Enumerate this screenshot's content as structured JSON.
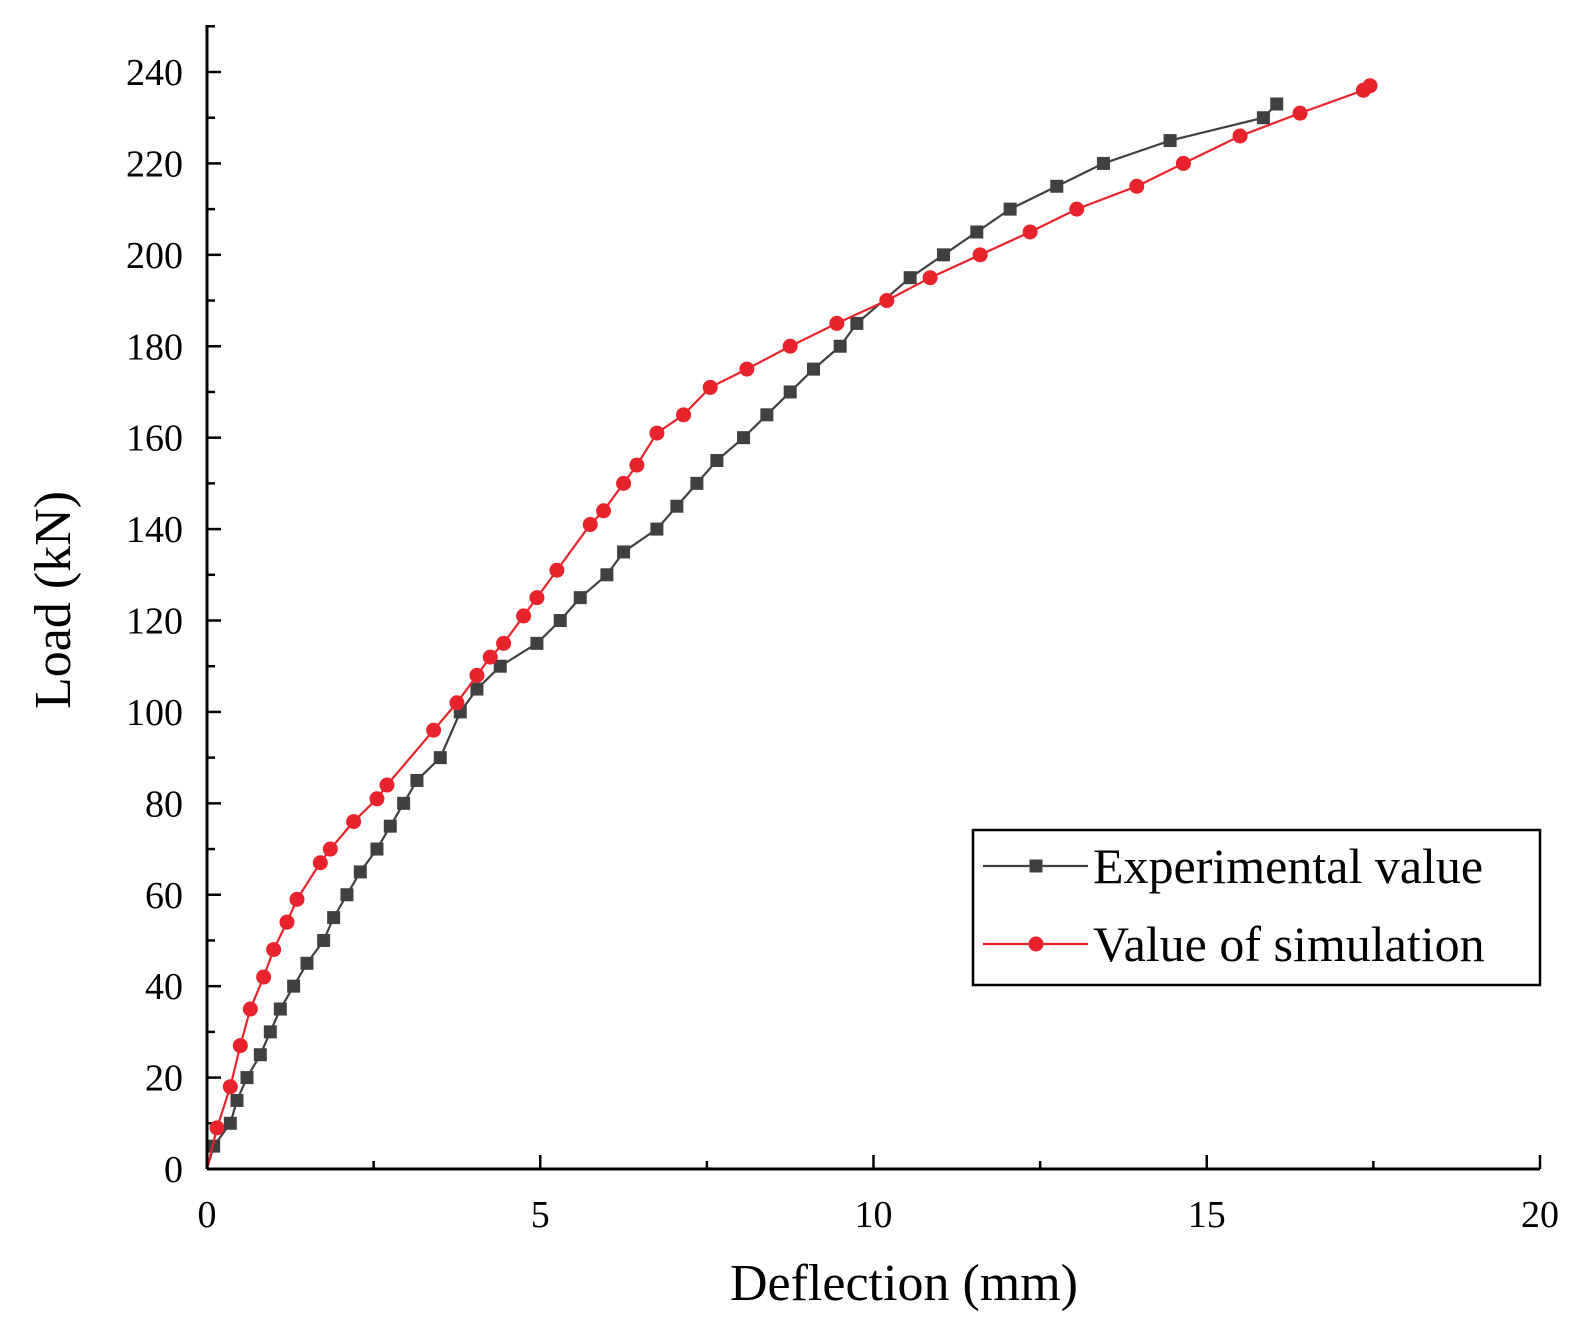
{
  "chart_data": {
    "type": "line",
    "xlabel": "Deflection (mm)",
    "ylabel": "Load (kN)",
    "xlim": [
      0,
      20
    ],
    "ylim": [
      0,
      250
    ],
    "xticks": [
      "0",
      "5",
      "10",
      "15",
      "20"
    ],
    "yticks": [
      "0",
      "20",
      "40",
      "60",
      "80",
      "100",
      "120",
      "140",
      "160",
      "180",
      "200",
      "220",
      "240"
    ],
    "grid": false,
    "legend_position": "bottom-right",
    "series": [
      {
        "name": "Experimental value",
        "color": "#404040",
        "marker": "square",
        "x": [
          0.1,
          0.35,
          0.45,
          0.6,
          0.8,
          0.95,
          1.1,
          1.3,
          1.5,
          1.75,
          1.9,
          2.1,
          2.3,
          2.55,
          2.75,
          2.95,
          3.15,
          3.5,
          3.8,
          4.05,
          4.4,
          4.95,
          5.3,
          5.6,
          6.0,
          6.25,
          6.75,
          7.05,
          7.35,
          7.65,
          8.05,
          8.4,
          8.75,
          9.1,
          9.5,
          9.75,
          10.55,
          11.05,
          11.55,
          12.05,
          12.75,
          13.45,
          14.45,
          15.85,
          16.05
        ],
        "y": [
          5,
          10,
          15,
          20,
          25,
          30,
          35,
          40,
          45,
          50,
          55,
          60,
          65,
          70,
          75,
          80,
          85,
          90,
          100,
          105,
          110,
          115,
          120,
          125,
          130,
          135,
          140,
          145,
          150,
          155,
          160,
          165,
          170,
          175,
          180,
          185,
          195,
          200,
          205,
          210,
          215,
          220,
          225,
          230,
          233
        ]
      },
      {
        "name": "Value of simulation",
        "color": "#e8232b",
        "marker": "circle",
        "x": [
          0.15,
          0.35,
          0.5,
          0.65,
          0.85,
          1.0,
          1.2,
          1.35,
          1.7,
          1.85,
          2.2,
          2.55,
          2.7,
          3.4,
          3.75,
          4.05,
          4.25,
          4.45,
          4.75,
          4.95,
          5.25,
          5.75,
          5.95,
          6.25,
          6.45,
          6.75,
          7.15,
          7.55,
          8.1,
          8.75,
          9.45,
          10.2,
          10.85,
          11.6,
          12.35,
          13.05,
          13.95,
          14.65,
          15.5,
          16.4,
          17.35,
          17.45
        ],
        "y": [
          9,
          18,
          27,
          35,
          42,
          48,
          54,
          59,
          67,
          70,
          76,
          81,
          84,
          96,
          102,
          108,
          112,
          115,
          121,
          125,
          131,
          141,
          144,
          150,
          154,
          161,
          165,
          171,
          175,
          180,
          185,
          190,
          195,
          200,
          205,
          210,
          215,
          220,
          226,
          231,
          236,
          237
        ]
      }
    ]
  }
}
